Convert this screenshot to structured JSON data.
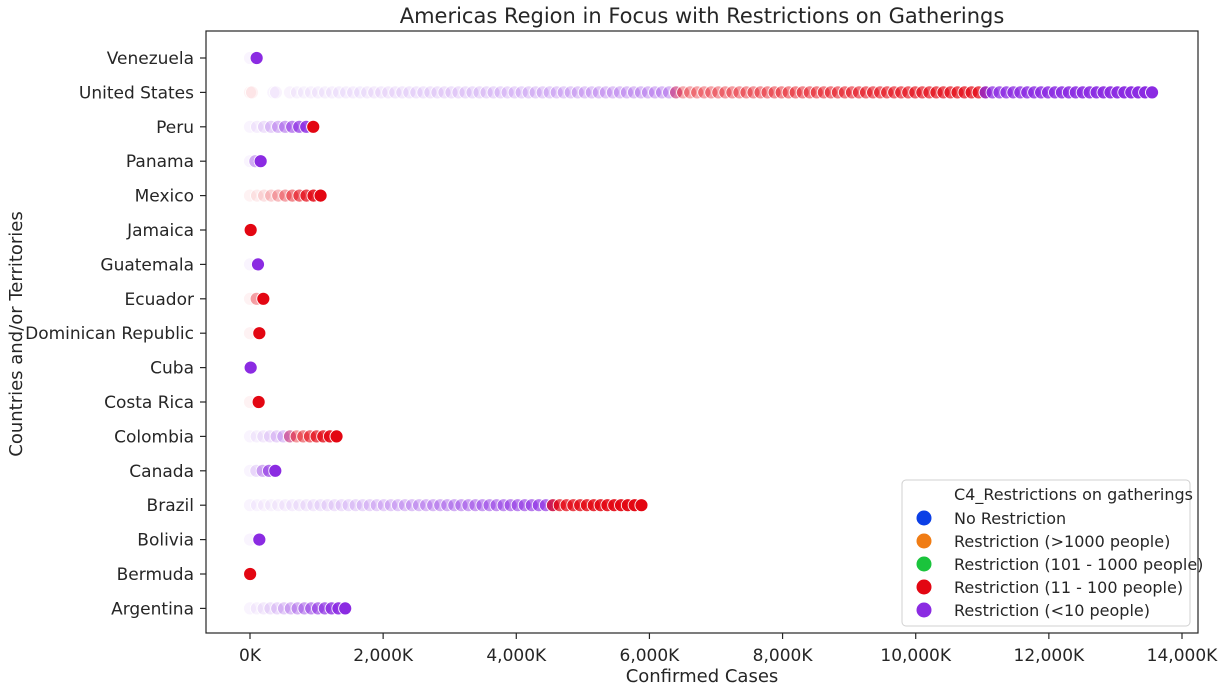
{
  "chart_data": {
    "type": "scatter",
    "title": "Americas Region in Focus with Restrictions on Gatherings",
    "xlabel": "Confirmed Cases",
    "ylabel": "Countries and/or Territories",
    "xlim": [
      -650,
      14000
    ],
    "x_ticks": [
      0,
      2000,
      4000,
      6000,
      8000,
      10000,
      12000,
      14000
    ],
    "x_tick_labels": [
      "0K",
      "2,000K",
      "4,000K",
      "6,000K",
      "8,000K",
      "10,000K",
      "12,000K",
      "14,000K"
    ],
    "x_unit": "thousands of confirmed cases",
    "categories": [
      "Venezuela",
      "United States",
      "Peru",
      "Panama",
      "Mexico",
      "Jamaica",
      "Guatemala",
      "Ecuador",
      "Dominican Republic",
      "Cuba",
      "Costa Rica",
      "Colombia",
      "Canada",
      "Brazil",
      "Bolivia",
      "Bermuda",
      "Argentina"
    ],
    "grid": false,
    "legend": {
      "title": "C4_Restrictions on gatherings",
      "placement": "bottom-right",
      "entries": [
        {
          "label": "No Restriction",
          "color": "#0b3fe6"
        },
        {
          "label": "Restriction (>1000 people)",
          "color": "#f07c14"
        },
        {
          "label": "Restriction (101 - 1000 people)",
          "color": "#1ac43c"
        },
        {
          "label": "Restriction (11 - 100 people)",
          "color": "#e30612"
        },
        {
          "label": "Restriction (<10 people)",
          "color": "#8b2be2"
        }
      ]
    },
    "series": [
      {
        "category": "Venezuela",
        "segments": [
          {
            "from": 0,
            "to": 100,
            "color": "#8b2be2"
          }
        ]
      },
      {
        "category": "United States",
        "segments": [
          {
            "from": 0,
            "to": 30,
            "color": "#e30612"
          },
          {
            "from": 350,
            "to": 390,
            "color": "#8b2be2"
          },
          {
            "from": 600,
            "to": 6400,
            "color": "#8b2be2"
          },
          {
            "from": 6400,
            "to": 11050,
            "color": "#e30612"
          },
          {
            "from": 11050,
            "to": 13550,
            "color": "#8b2be2"
          }
        ]
      },
      {
        "category": "Peru",
        "segments": [
          {
            "from": 0,
            "to": 950,
            "color": "#8b2be2"
          },
          {
            "from": 950,
            "to": 950,
            "color": "#e30612"
          }
        ]
      },
      {
        "category": "Panama",
        "segments": [
          {
            "from": 0,
            "to": 160,
            "color": "#8b2be2"
          }
        ]
      },
      {
        "category": "Mexico",
        "segments": [
          {
            "from": 0,
            "to": 1060,
            "color": "#e30612"
          }
        ]
      },
      {
        "category": "Jamaica",
        "segments": [
          {
            "from": 0,
            "to": 10,
            "color": "#e30612"
          }
        ]
      },
      {
        "category": "Guatemala",
        "segments": [
          {
            "from": 0,
            "to": 120,
            "color": "#8b2be2"
          }
        ]
      },
      {
        "category": "Ecuador",
        "segments": [
          {
            "from": 0,
            "to": 200,
            "color": "#e30612"
          }
        ]
      },
      {
        "category": "Dominican Republic",
        "segments": [
          {
            "from": 0,
            "to": 140,
            "color": "#e30612"
          }
        ]
      },
      {
        "category": "Cuba",
        "segments": [
          {
            "from": 0,
            "to": 10,
            "color": "#8b2be2"
          }
        ]
      },
      {
        "category": "Costa Rica",
        "segments": [
          {
            "from": 0,
            "to": 130,
            "color": "#e30612"
          }
        ]
      },
      {
        "category": "Colombia",
        "segments": [
          {
            "from": 0,
            "to": 600,
            "color": "#8b2be2"
          },
          {
            "from": 600,
            "to": 1300,
            "color": "#e30612"
          }
        ]
      },
      {
        "category": "Canada",
        "segments": [
          {
            "from": 0,
            "to": 380,
            "color": "#8b2be2"
          }
        ]
      },
      {
        "category": "Brazil",
        "segments": [
          {
            "from": 0,
            "to": 4550,
            "color": "#8b2be2"
          },
          {
            "from": 4550,
            "to": 5880,
            "color": "#e30612"
          }
        ]
      },
      {
        "category": "Bolivia",
        "segments": [
          {
            "from": 0,
            "to": 140,
            "color": "#8b2be2"
          }
        ]
      },
      {
        "category": "Bermuda",
        "segments": [
          {
            "from": 0,
            "to": 2,
            "color": "#e30612"
          }
        ]
      },
      {
        "category": "Argentina",
        "segments": [
          {
            "from": 0,
            "to": 1430,
            "color": "#8b2be2"
          }
        ]
      }
    ]
  }
}
